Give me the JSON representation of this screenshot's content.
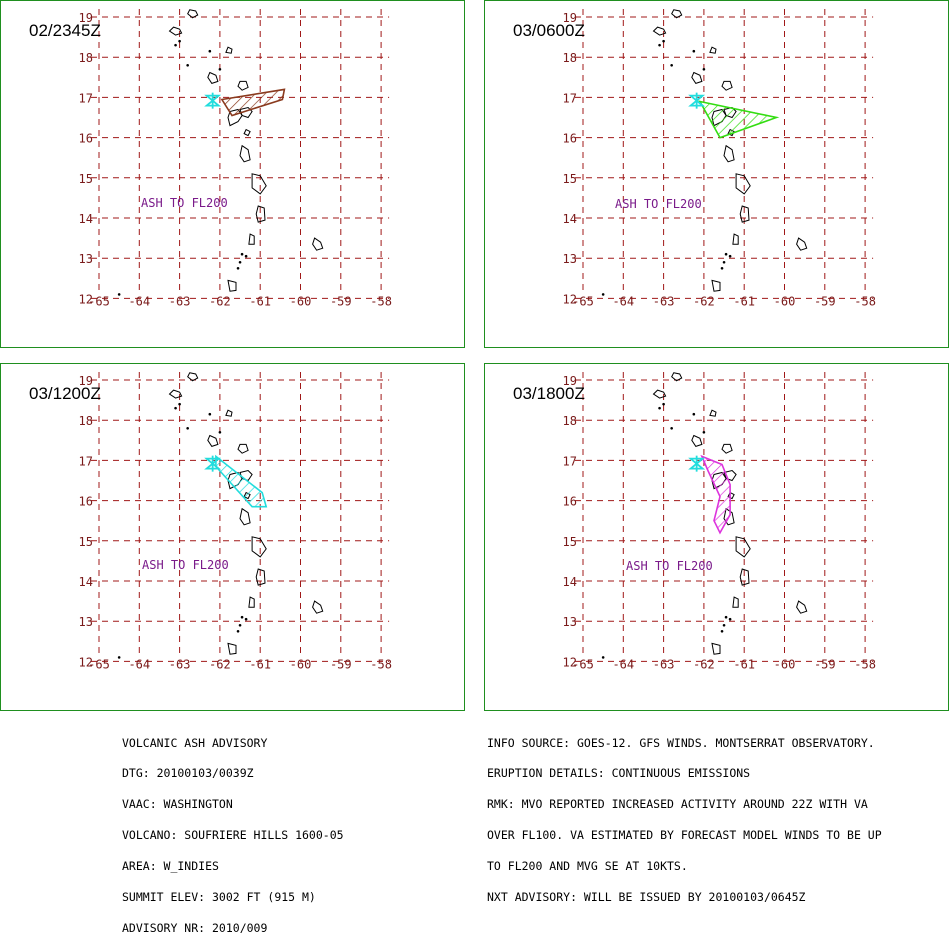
{
  "axis": {
    "lats": [
      "19",
      "18",
      "17",
      "16",
      "15",
      "14",
      "13",
      "12"
    ],
    "lons": [
      "-65",
      "-64",
      "-63",
      "-62",
      "-61",
      "-60",
      "-59",
      "-58"
    ]
  },
  "panels": [
    {
      "title": "02/2345Z",
      "ash": "ASH TO FL200",
      "cloud_color": "#8a3a1e"
    },
    {
      "title": "03/0600Z",
      "ash": "ASH  TO  FL200",
      "cloud_color": "#33dd11"
    },
    {
      "title": "03/1200Z",
      "ash": "ASH TO FL200",
      "cloud_color": "#22dddd"
    },
    {
      "title": "03/1800Z",
      "ash": "ASH TO FL200",
      "cloud_color": "#dd33dd"
    }
  ],
  "colors": {
    "grid": "#a01818",
    "border": "#1f8f1f",
    "ash_label": "#7a1a8a",
    "volcano": "#22dddd"
  },
  "advisory_left": [
    "VOLCANIC ASH ADVISORY",
    "DTG: 20100103/0039Z",
    "VAAC: WASHINGTON",
    "VOLCANO: SOUFRIERE HILLS 1600-05",
    "AREA: W_INDIES",
    "SUMMIT ELEV: 3002 FT (915 M)",
    "ADVISORY NR: 2010/009"
  ],
  "advisory_right": [
    "INFO SOURCE: GOES-12. GFS WINDS. MONTSERRAT OBSERVATORY.",
    "ERUPTION DETAILS: CONTINUOUS EMISSIONS",
    "RMK: MVO REPORTED INCREASED ACTIVITY AROUND 22Z WITH VA",
    "OVER FL100. VA ESTIMATED BY FORECAST MODEL WINDS TO BE UP",
    "TO FL200 AND MVG SE AT 10KTS.",
    "NXT ADVISORY: WILL BE ISSUED BY 20100103/0645Z"
  ]
}
